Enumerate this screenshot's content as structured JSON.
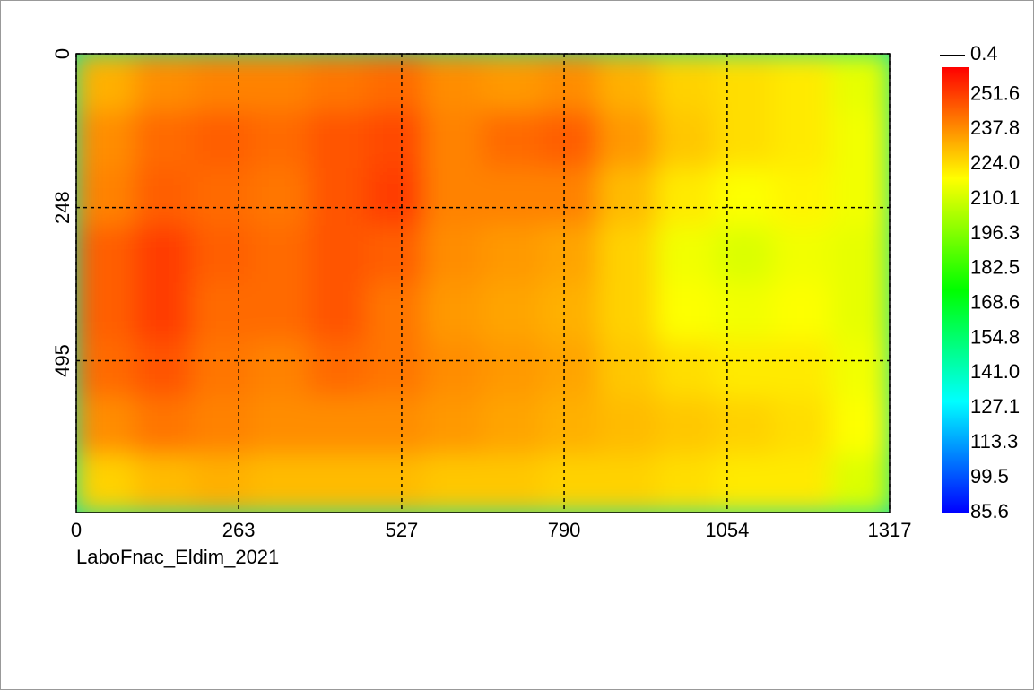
{
  "chart_data": {
    "type": "heatmap",
    "caption": "LaboFnac_Eldim_2021",
    "xlim": [
      0,
      1317
    ],
    "ylim": [
      0,
      740
    ],
    "xticks": [
      0,
      263,
      527,
      790,
      1054,
      1317
    ],
    "yticks": [
      0,
      248,
      495
    ],
    "grid": true,
    "z": [
      [
        232,
        238,
        240,
        240,
        242,
        244,
        238,
        236,
        238,
        232,
        226,
        224,
        222,
        214
      ],
      [
        238,
        244,
        246,
        244,
        248,
        250,
        240,
        244,
        246,
        236,
        228,
        224,
        222,
        216
      ],
      [
        240,
        246,
        244,
        242,
        248,
        252,
        240,
        240,
        240,
        230,
        222,
        218,
        220,
        216
      ],
      [
        246,
        252,
        246,
        244,
        248,
        246,
        238,
        236,
        234,
        226,
        216,
        212,
        216,
        214
      ],
      [
        246,
        252,
        244,
        244,
        248,
        242,
        236,
        234,
        232,
        226,
        218,
        216,
        218,
        214
      ],
      [
        244,
        248,
        242,
        240,
        244,
        242,
        238,
        236,
        234,
        228,
        224,
        222,
        222,
        216
      ],
      [
        238,
        242,
        240,
        238,
        238,
        238,
        236,
        234,
        232,
        230,
        228,
        226,
        224,
        218
      ],
      [
        226,
        230,
        232,
        230,
        230,
        230,
        228,
        228,
        226,
        226,
        224,
        222,
        222,
        212
      ]
    ],
    "colormap": [
      "#0000ff",
      "#00ffff",
      "#00ff00",
      "#ffff00",
      "#ff0000"
    ],
    "clim": [
      85.6,
      262.5
    ],
    "cticks": [
      {
        "value": 251.6,
        "label": "251.6"
      },
      237.8,
      {
        "value": 224.0,
        "label": "224.0"
      },
      210.1,
      196.3,
      182.5,
      168.6,
      154.8,
      {
        "value": 141.0,
        "label": "141.0"
      },
      127.1,
      113.3,
      99.5,
      85.6
    ],
    "colorbar_marker": 0.4
  }
}
